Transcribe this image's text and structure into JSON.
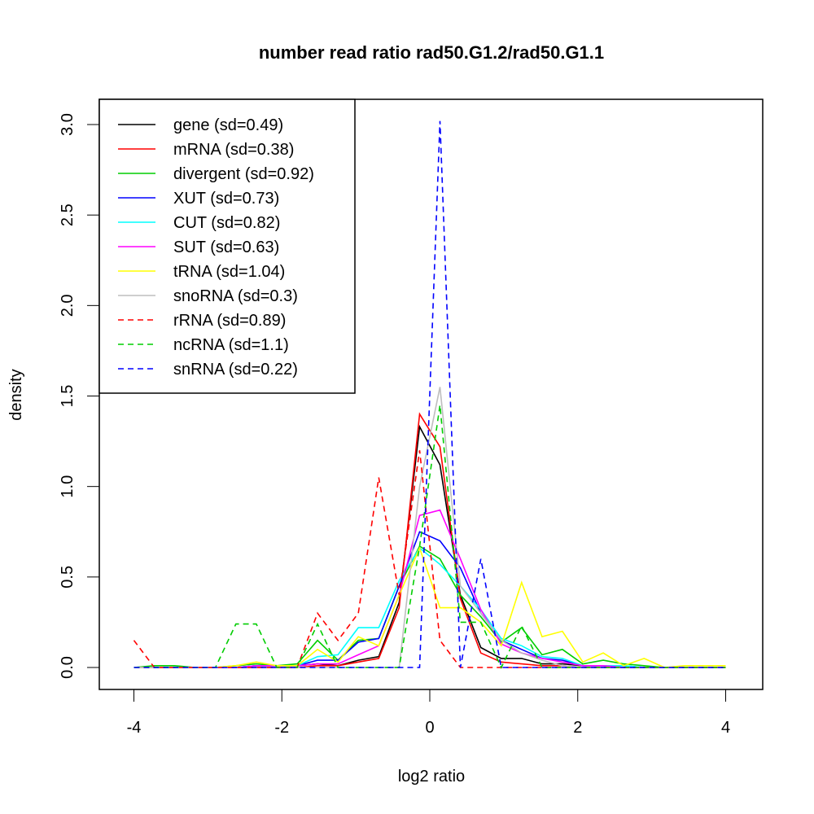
{
  "chart_data": {
    "type": "line",
    "title": "number read ratio rad50.G1.2/rad50.G1.1",
    "xlabel": "log2 ratio",
    "ylabel": "density",
    "xlim": [
      -4.4,
      4.5
    ],
    "ylim": [
      -0.12,
      3.12
    ],
    "xticks": [
      -4,
      -2,
      0,
      2,
      4
    ],
    "xtick_labels": [
      "-4",
      "-2",
      "0",
      "2",
      "4"
    ],
    "yticks": [
      0,
      0.5,
      1,
      1.5,
      2,
      2.5,
      3
    ],
    "ytick_labels": [
      "0.0",
      "0.5",
      "1.0",
      "1.5",
      "2.0",
      "2.5",
      "3.0"
    ],
    "legend_position": "top-left",
    "x": [
      -4,
      -3.724,
      -3.448,
      -3.172,
      -2.897,
      -2.621,
      -2.345,
      -2.069,
      -1.793,
      -1.517,
      -1.241,
      -0.966,
      -0.69,
      -0.414,
      -0.138,
      0.138,
      0.414,
      0.69,
      0.966,
      1.241,
      1.517,
      1.793,
      2.069,
      2.345,
      2.621,
      2.897,
      3.172,
      3.448,
      3.724,
      4
    ],
    "series": [
      {
        "name": "gene (sd=0.49)",
        "color": "#000000",
        "dash": false,
        "values": [
          0,
          0,
          0,
          0,
          0,
          0,
          0.01,
          0.01,
          0.01,
          0.02,
          0.01,
          0.04,
          0.06,
          0.36,
          1.33,
          1.12,
          0.4,
          0.11,
          0.05,
          0.05,
          0.02,
          0.02,
          0.01,
          0.01,
          0,
          0,
          0,
          0,
          0,
          0
        ]
      },
      {
        "name": "mRNA (sd=0.38)",
        "color": "#ff0000",
        "dash": false,
        "values": [
          0,
          0,
          0,
          0,
          0,
          0,
          0,
          0,
          0,
          0.01,
          0.01,
          0.03,
          0.05,
          0.33,
          1.4,
          1.22,
          0.38,
          0.08,
          0.03,
          0.02,
          0.01,
          0.01,
          0,
          0,
          0,
          0,
          0,
          0,
          0,
          0
        ]
      },
      {
        "name": "divergent (sd=0.92)",
        "color": "#00cd00",
        "dash": false,
        "values": [
          0,
          0.01,
          0.01,
          0,
          0,
          0.01,
          0.02,
          0.01,
          0.02,
          0.15,
          0.04,
          0.15,
          0.16,
          0.45,
          0.67,
          0.6,
          0.4,
          0.28,
          0.14,
          0.22,
          0.07,
          0.1,
          0.02,
          0.04,
          0.02,
          0.01,
          0,
          0,
          0,
          0
        ]
      },
      {
        "name": "XUT (sd=0.73)",
        "color": "#0000ff",
        "dash": false,
        "values": [
          0,
          0,
          0,
          0,
          0,
          0,
          0.01,
          0.01,
          0.01,
          0.04,
          0.04,
          0.14,
          0.16,
          0.45,
          0.75,
          0.7,
          0.55,
          0.3,
          0.15,
          0.1,
          0.05,
          0.04,
          0.01,
          0.01,
          0.01,
          0,
          0,
          0,
          0,
          0
        ]
      },
      {
        "name": "CUT (sd=0.82)",
        "color": "#00ffff",
        "dash": false,
        "values": [
          0,
          0,
          0,
          0,
          0,
          0,
          0.01,
          0.01,
          0.01,
          0.06,
          0.07,
          0.22,
          0.22,
          0.48,
          0.66,
          0.57,
          0.45,
          0.32,
          0.16,
          0.12,
          0.06,
          0.05,
          0.01,
          0.01,
          0.01,
          0,
          0,
          0,
          0,
          0
        ]
      },
      {
        "name": "SUT (sd=0.63)",
        "color": "#ff00ff",
        "dash": false,
        "values": [
          0,
          0,
          0,
          0,
          0,
          0,
          0.01,
          0.01,
          0.01,
          0.02,
          0.02,
          0.07,
          0.12,
          0.4,
          0.84,
          0.87,
          0.6,
          0.32,
          0.13,
          0.08,
          0.05,
          0.03,
          0.01,
          0.01,
          0,
          0,
          0,
          0,
          0,
          0
        ]
      },
      {
        "name": "tRNA (sd=1.04)",
        "color": "#ffff00",
        "dash": false,
        "values": [
          0,
          0,
          0,
          0,
          0,
          0.01,
          0.03,
          0.01,
          0.01,
          0.1,
          0.03,
          0.17,
          0.12,
          0.4,
          0.66,
          0.33,
          0.33,
          0.25,
          0.12,
          0.47,
          0.17,
          0.2,
          0.03,
          0.08,
          0.01,
          0.05,
          0,
          0.01,
          0.01,
          0.01
        ]
      },
      {
        "name": "snoRNA (sd=0.3)",
        "color": "#bebebe",
        "dash": false,
        "values": [
          0,
          0,
          0,
          0,
          0,
          0,
          0,
          0,
          0,
          0,
          0,
          0,
          0,
          0,
          1.0,
          1.55,
          0.45,
          0.3,
          0.15,
          0.08,
          0.04,
          0.01,
          0,
          0,
          0,
          0,
          0,
          0,
          0,
          0
        ]
      },
      {
        "name": "rRNA (sd=0.89)",
        "color": "#ff0000",
        "dash": true,
        "values": [
          0.15,
          0,
          0,
          0,
          0,
          0,
          0,
          0,
          0,
          0.3,
          0.15,
          0.3,
          1.05,
          0.4,
          1.2,
          0.15,
          0,
          0,
          0,
          0,
          0,
          0,
          0,
          0,
          0,
          0,
          0,
          0,
          0,
          0
        ]
      },
      {
        "name": "ncRNA (sd=1.1)",
        "color": "#00cd00",
        "dash": true,
        "values": [
          0,
          0,
          0,
          0,
          0,
          0.24,
          0.24,
          0,
          0,
          0.24,
          0,
          0,
          0,
          0,
          0.67,
          1.45,
          0.25,
          0.25,
          0,
          0.23,
          0,
          0,
          0,
          0,
          0,
          0,
          0,
          0,
          0,
          0
        ]
      },
      {
        "name": "snRNA (sd=0.22)",
        "color": "#0000ff",
        "dash": true,
        "values": [
          0,
          0,
          0,
          0,
          0,
          0,
          0,
          0,
          0,
          0,
          0,
          0,
          0,
          0,
          0,
          3.02,
          0,
          0.6,
          0,
          0,
          0,
          0,
          0,
          0,
          0,
          0,
          0,
          0,
          0,
          0
        ]
      }
    ]
  }
}
